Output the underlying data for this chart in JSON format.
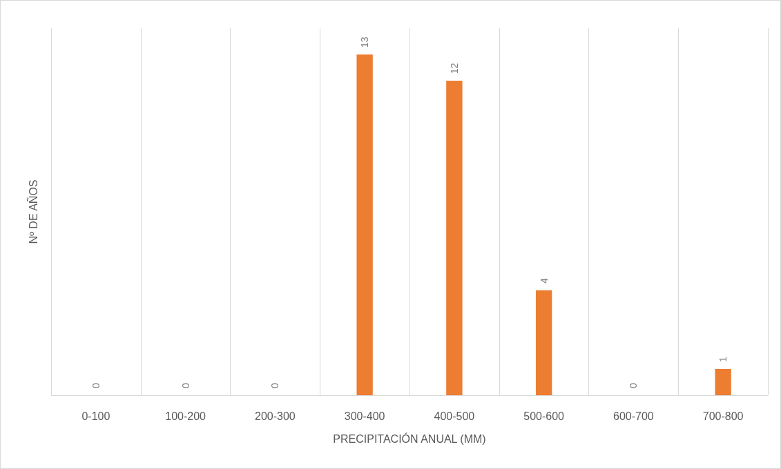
{
  "chart_data": {
    "type": "bar",
    "xlabel": "PRECIPITACIÓN ANUAL (MM)",
    "ylabel": "Nº DE AÑOS",
    "categories": [
      "0-100",
      "100-200",
      "200-300",
      "300-400",
      "400-500",
      "500-600",
      "600-700",
      "700-800"
    ],
    "values": [
      0,
      0,
      0,
      13,
      12,
      4,
      0,
      1
    ],
    "color": "#ed7d31",
    "ylim": [
      0,
      14
    ],
    "data_labels": true,
    "grid": "x"
  }
}
